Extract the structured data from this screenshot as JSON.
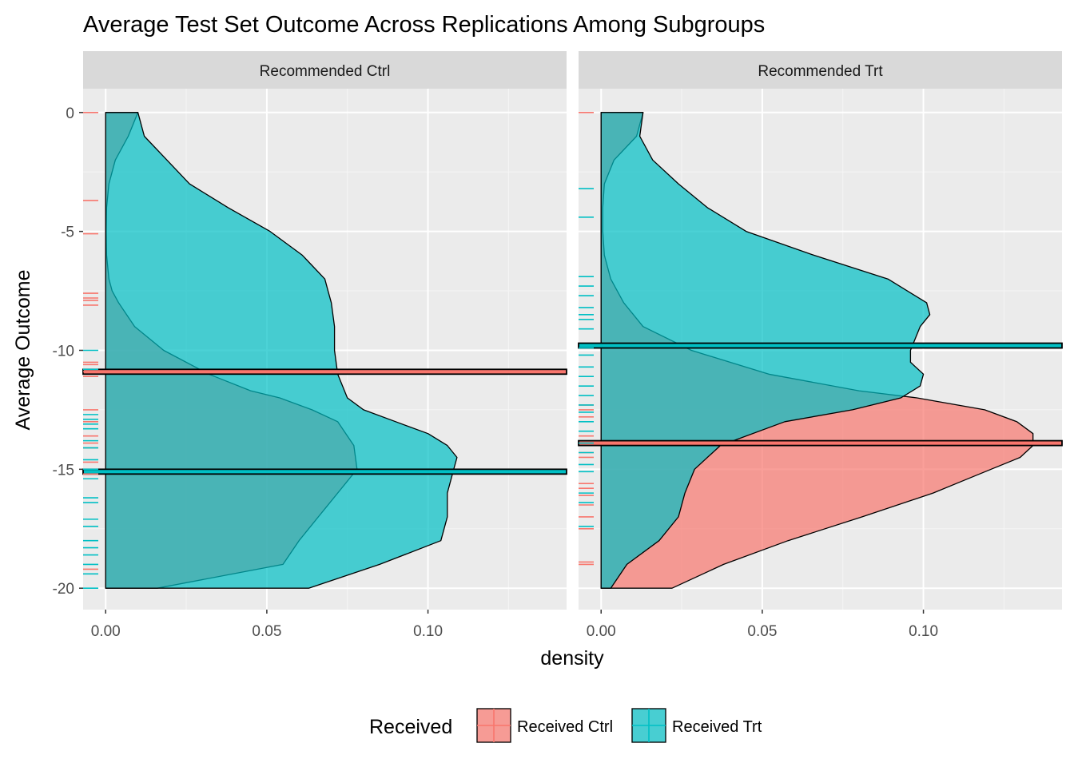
{
  "chart_data": {
    "type": "area",
    "title": "Average Test Set Outcome Across Replications Among Subgroups",
    "xlabel": "density",
    "ylabel": "Average Outcome",
    "orientation": "horizontal-density",
    "x_ticks": [
      "0.00",
      "0.05",
      "0.10"
    ],
    "x_tick_values": [
      0,
      0.05,
      0.1
    ],
    "y_ticks": [
      "0",
      "-5",
      "-10",
      "-15",
      "-20"
    ],
    "y_tick_values": [
      0,
      -5,
      -10,
      -15,
      -20
    ],
    "xlim": [
      -0.007,
      0.143
    ],
    "ylim": [
      -20.9,
      1.0
    ],
    "grid": true,
    "legend": {
      "title": "Received",
      "position": "bottom",
      "entries": [
        {
          "label": "Received Ctrl",
          "color": "#F8766D"
        },
        {
          "label": "Received Trt",
          "color": "#00BFC4"
        }
      ]
    },
    "panels": [
      {
        "strip": "Recommended Ctrl",
        "series": [
          {
            "name": "Received Ctrl",
            "color": "#F8766D",
            "y": [
              0,
              -1,
              -2,
              -3,
              -4,
              -5,
              -6,
              -7,
              -7.5,
              -8,
              -9,
              -10,
              -11,
              -11.7,
              -12,
              -12.5,
              -13,
              -14,
              -15,
              -16,
              -17,
              -18,
              -19,
              -20
            ],
            "density": [
              0.01,
              0.007,
              0.003,
              0.001,
              0.0003,
              0.0002,
              0.0003,
              0.001,
              0.002,
              0.004,
              0.009,
              0.018,
              0.032,
              0.045,
              0.054,
              0.064,
              0.072,
              0.077,
              0.078,
              0.072,
              0.066,
              0.06,
              0.055,
              0.016
            ],
            "mean": -10.9,
            "rug": [
              0,
              -3.7,
              -5.1,
              -7.6,
              -7.8,
              -7.9,
              -8.1,
              -10.5,
              -10.6,
              -10.9,
              -11.1,
              -12.5,
              -13.0,
              -13.6,
              -13.9,
              -14.1,
              -14.7,
              -15.2,
              -19.2
            ]
          },
          {
            "name": "Received Trt",
            "color": "#00BFC4",
            "y": [
              0,
              -1,
              -2,
              -3,
              -4,
              -5,
              -6,
              -7,
              -7.5,
              -8,
              -9,
              -10,
              -11,
              -12,
              -12.5,
              -13,
              -13.5,
              -14,
              -14.5,
              -15,
              -16,
              -17,
              -18,
              -19,
              -20
            ],
            "density": [
              0.01,
              0.012,
              0.019,
              0.026,
              0.038,
              0.051,
              0.061,
              0.068,
              0.069,
              0.07,
              0.071,
              0.071,
              0.072,
              0.075,
              0.08,
              0.09,
              0.1,
              0.106,
              0.109,
              0.108,
              0.106,
              0.106,
              0.104,
              0.085,
              0.063
            ],
            "mean": -15.1,
            "rug": [
              -10.0,
              -10.8,
              -12.7,
              -12.9,
              -13.1,
              -13.3,
              -13.8,
              -14.1,
              -14.6,
              -15.0,
              -15.4,
              -16.2,
              -16.4,
              -17.1,
              -17.4,
              -18.0,
              -18.3,
              -18.6,
              -19.0,
              -19.4,
              -20.0
            ]
          }
        ]
      },
      {
        "strip": "Recommended Trt",
        "series": [
          {
            "name": "Received Ctrl",
            "color": "#F8766D",
            "y": [
              0,
              -1,
              -2,
              -3,
              -4,
              -5,
              -6,
              -7,
              -8,
              -9,
              -10,
              -11,
              -11.7,
              -12,
              -12.5,
              -13,
              -13.5,
              -14,
              -14.5,
              -15,
              -15.5,
              -16,
              -17,
              -18,
              -19,
              -20
            ],
            "density": [
              0.013,
              0.011,
              0.004,
              0.001,
              0.0005,
              0.0005,
              0.001,
              0.003,
              0.007,
              0.013,
              0.028,
              0.052,
              0.08,
              0.098,
              0.119,
              0.129,
              0.134,
              0.134,
              0.13,
              0.121,
              0.112,
              0.103,
              0.081,
              0.058,
              0.038,
              0.022
            ],
            "mean": -13.9,
            "rug": [
              0,
              -12.3,
              -12.5,
              -12.8,
              -13.6,
              -14.3,
              -14.5,
              -15.6,
              -15.8,
              -16.1,
              -16.5,
              -17.0,
              -17.5,
              -18.9,
              -19.0
            ]
          },
          {
            "name": "Received Trt",
            "color": "#00BFC4",
            "y": [
              0,
              -1,
              -2,
              -3,
              -4,
              -5,
              -6,
              -7,
              -8,
              -8.5,
              -9,
              -10,
              -10.5,
              -11,
              -11.5,
              -12,
              -12.5,
              -13,
              -14,
              -15,
              -16,
              -17,
              -18,
              -19,
              -20
            ],
            "density": [
              0.013,
              0.012,
              0.016,
              0.024,
              0.033,
              0.045,
              0.066,
              0.089,
              0.101,
              0.102,
              0.099,
              0.096,
              0.096,
              0.1,
              0.099,
              0.093,
              0.078,
              0.057,
              0.037,
              0.029,
              0.026,
              0.024,
              0.018,
              0.008,
              0.003
            ],
            "mean": -9.8,
            "rug": [
              -3.2,
              -4.4,
              -6.9,
              -7.3,
              -7.7,
              -8.2,
              -8.5,
              -8.7,
              -9.1,
              -9.9,
              -10.2,
              -10.7,
              -11.1,
              -11.5,
              -11.9,
              -12.3,
              -12.6,
              -13.0,
              -13.4,
              -13.9,
              -14.3,
              -14.8,
              -15.1,
              -16.0,
              -16.4,
              -17.4
            ]
          }
        ]
      }
    ]
  }
}
